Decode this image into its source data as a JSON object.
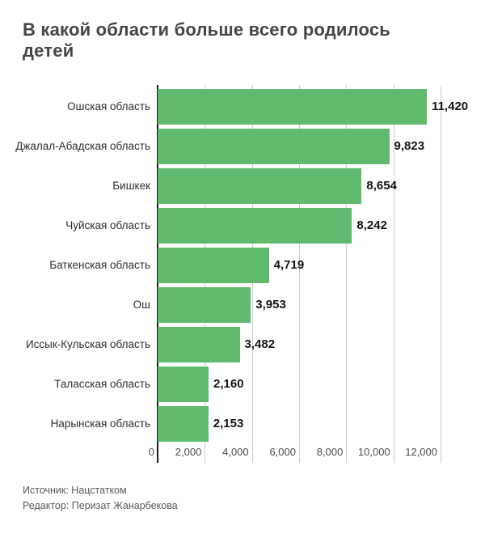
{
  "title": "В какой области больше всего родилось детей",
  "chart_data": {
    "type": "bar",
    "orientation": "horizontal",
    "title": "В какой области больше всего родилось детей",
    "categories": [
      "Ошская область",
      "Джалал-Абадская область",
      "Бишкек",
      "Чуйская область",
      "Баткенская область",
      "Ош",
      "Иссык-Кульская область",
      "Таласская область",
      "Нарынская область"
    ],
    "values": [
      11420,
      9823,
      8654,
      8242,
      4719,
      3953,
      3482,
      2160,
      2153
    ],
    "value_labels": [
      "11,420",
      "9,823",
      "8,654",
      "8,242",
      "4,719",
      "3,953",
      "3,482",
      "2,160",
      "2,153"
    ],
    "xlim": [
      0,
      12000
    ],
    "x_tick_values": [
      0,
      2000,
      4000,
      6000,
      8000,
      10000,
      12000
    ],
    "x_tick_labels": [
      "0",
      "2,000",
      "4,000",
      "6,000",
      "8,000",
      "10,000",
      "12,000"
    ],
    "grid": true,
    "legend": "none",
    "bar_color": "#60BA6E",
    "gridline_color": "#cccccc",
    "axis_line_color": "#1a1a1a"
  },
  "footer": {
    "source": "Источник: Нацстатком",
    "editor": "Редактор: Перизат Жанарбекова"
  }
}
